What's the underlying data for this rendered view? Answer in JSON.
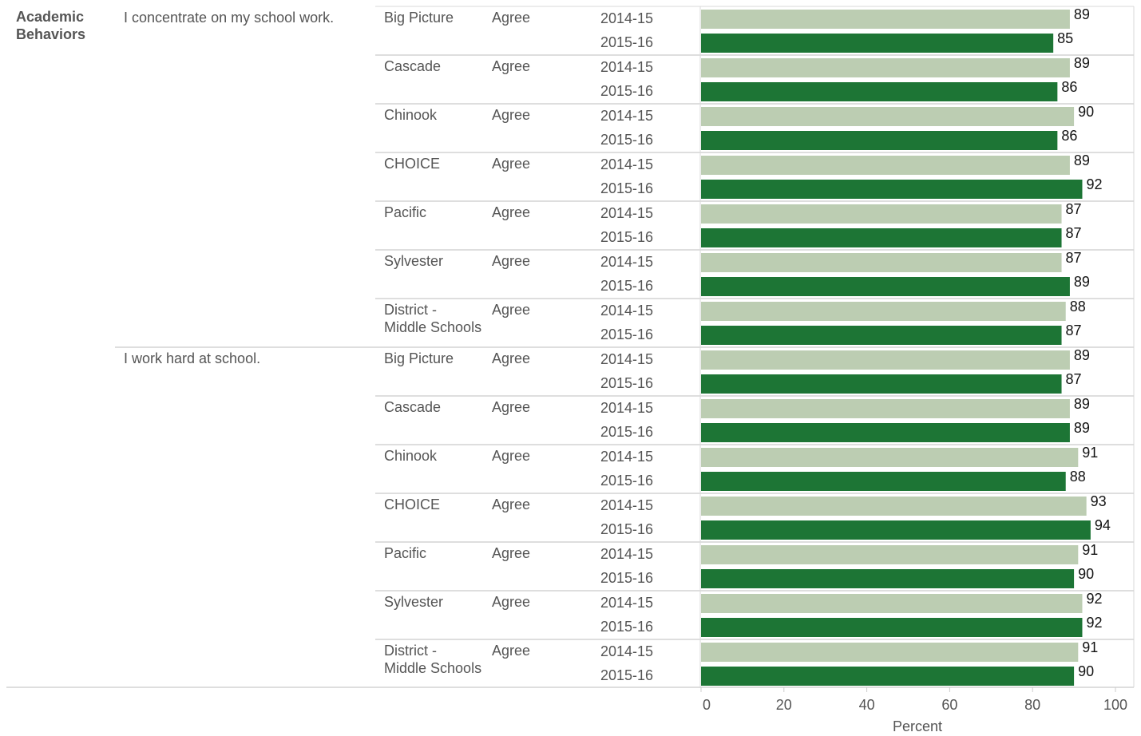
{
  "chart_data": {
    "type": "bar",
    "category": "Academic Behaviors",
    "xlabel": "Percent",
    "xlim": [
      0,
      100
    ],
    "x_ticks": [
      "0",
      "20",
      "40",
      "60",
      "80",
      "100"
    ],
    "series": [
      {
        "name": "2014-15",
        "color": "#bccdb2"
      },
      {
        "name": "2015-16",
        "color": "#1d7535"
      }
    ],
    "questions": [
      {
        "question": "I concentrate on my school work.",
        "schools": [
          {
            "school": "Big Picture",
            "response": "Agree",
            "values": [
              89,
              85
            ]
          },
          {
            "school": "Cascade",
            "response": "Agree",
            "values": [
              89,
              86
            ]
          },
          {
            "school": "Chinook",
            "response": "Agree",
            "values": [
              90,
              86
            ]
          },
          {
            "school": "CHOICE",
            "response": "Agree",
            "values": [
              89,
              92
            ]
          },
          {
            "school": "Pacific",
            "response": "Agree",
            "values": [
              87,
              87
            ]
          },
          {
            "school": "Sylvester",
            "response": "Agree",
            "values": [
              87,
              89
            ]
          },
          {
            "school": "District -\nMiddle Schools",
            "response": "Agree",
            "values": [
              88,
              87
            ]
          }
        ]
      },
      {
        "question": "I work hard at school.",
        "schools": [
          {
            "school": "Big Picture",
            "response": "Agree",
            "values": [
              89,
              87
            ]
          },
          {
            "school": "Cascade",
            "response": "Agree",
            "values": [
              89,
              89
            ]
          },
          {
            "school": "Chinook",
            "response": "Agree",
            "values": [
              91,
              88
            ]
          },
          {
            "school": "CHOICE",
            "response": "Agree",
            "values": [
              93,
              94
            ]
          },
          {
            "school": "Pacific",
            "response": "Agree",
            "values": [
              91,
              90
            ]
          },
          {
            "school": "Sylvester",
            "response": "Agree",
            "values": [
              92,
              92
            ]
          },
          {
            "school": "District -\nMiddle Schools",
            "response": "Agree",
            "values": [
              91,
              90
            ]
          }
        ]
      }
    ]
  }
}
